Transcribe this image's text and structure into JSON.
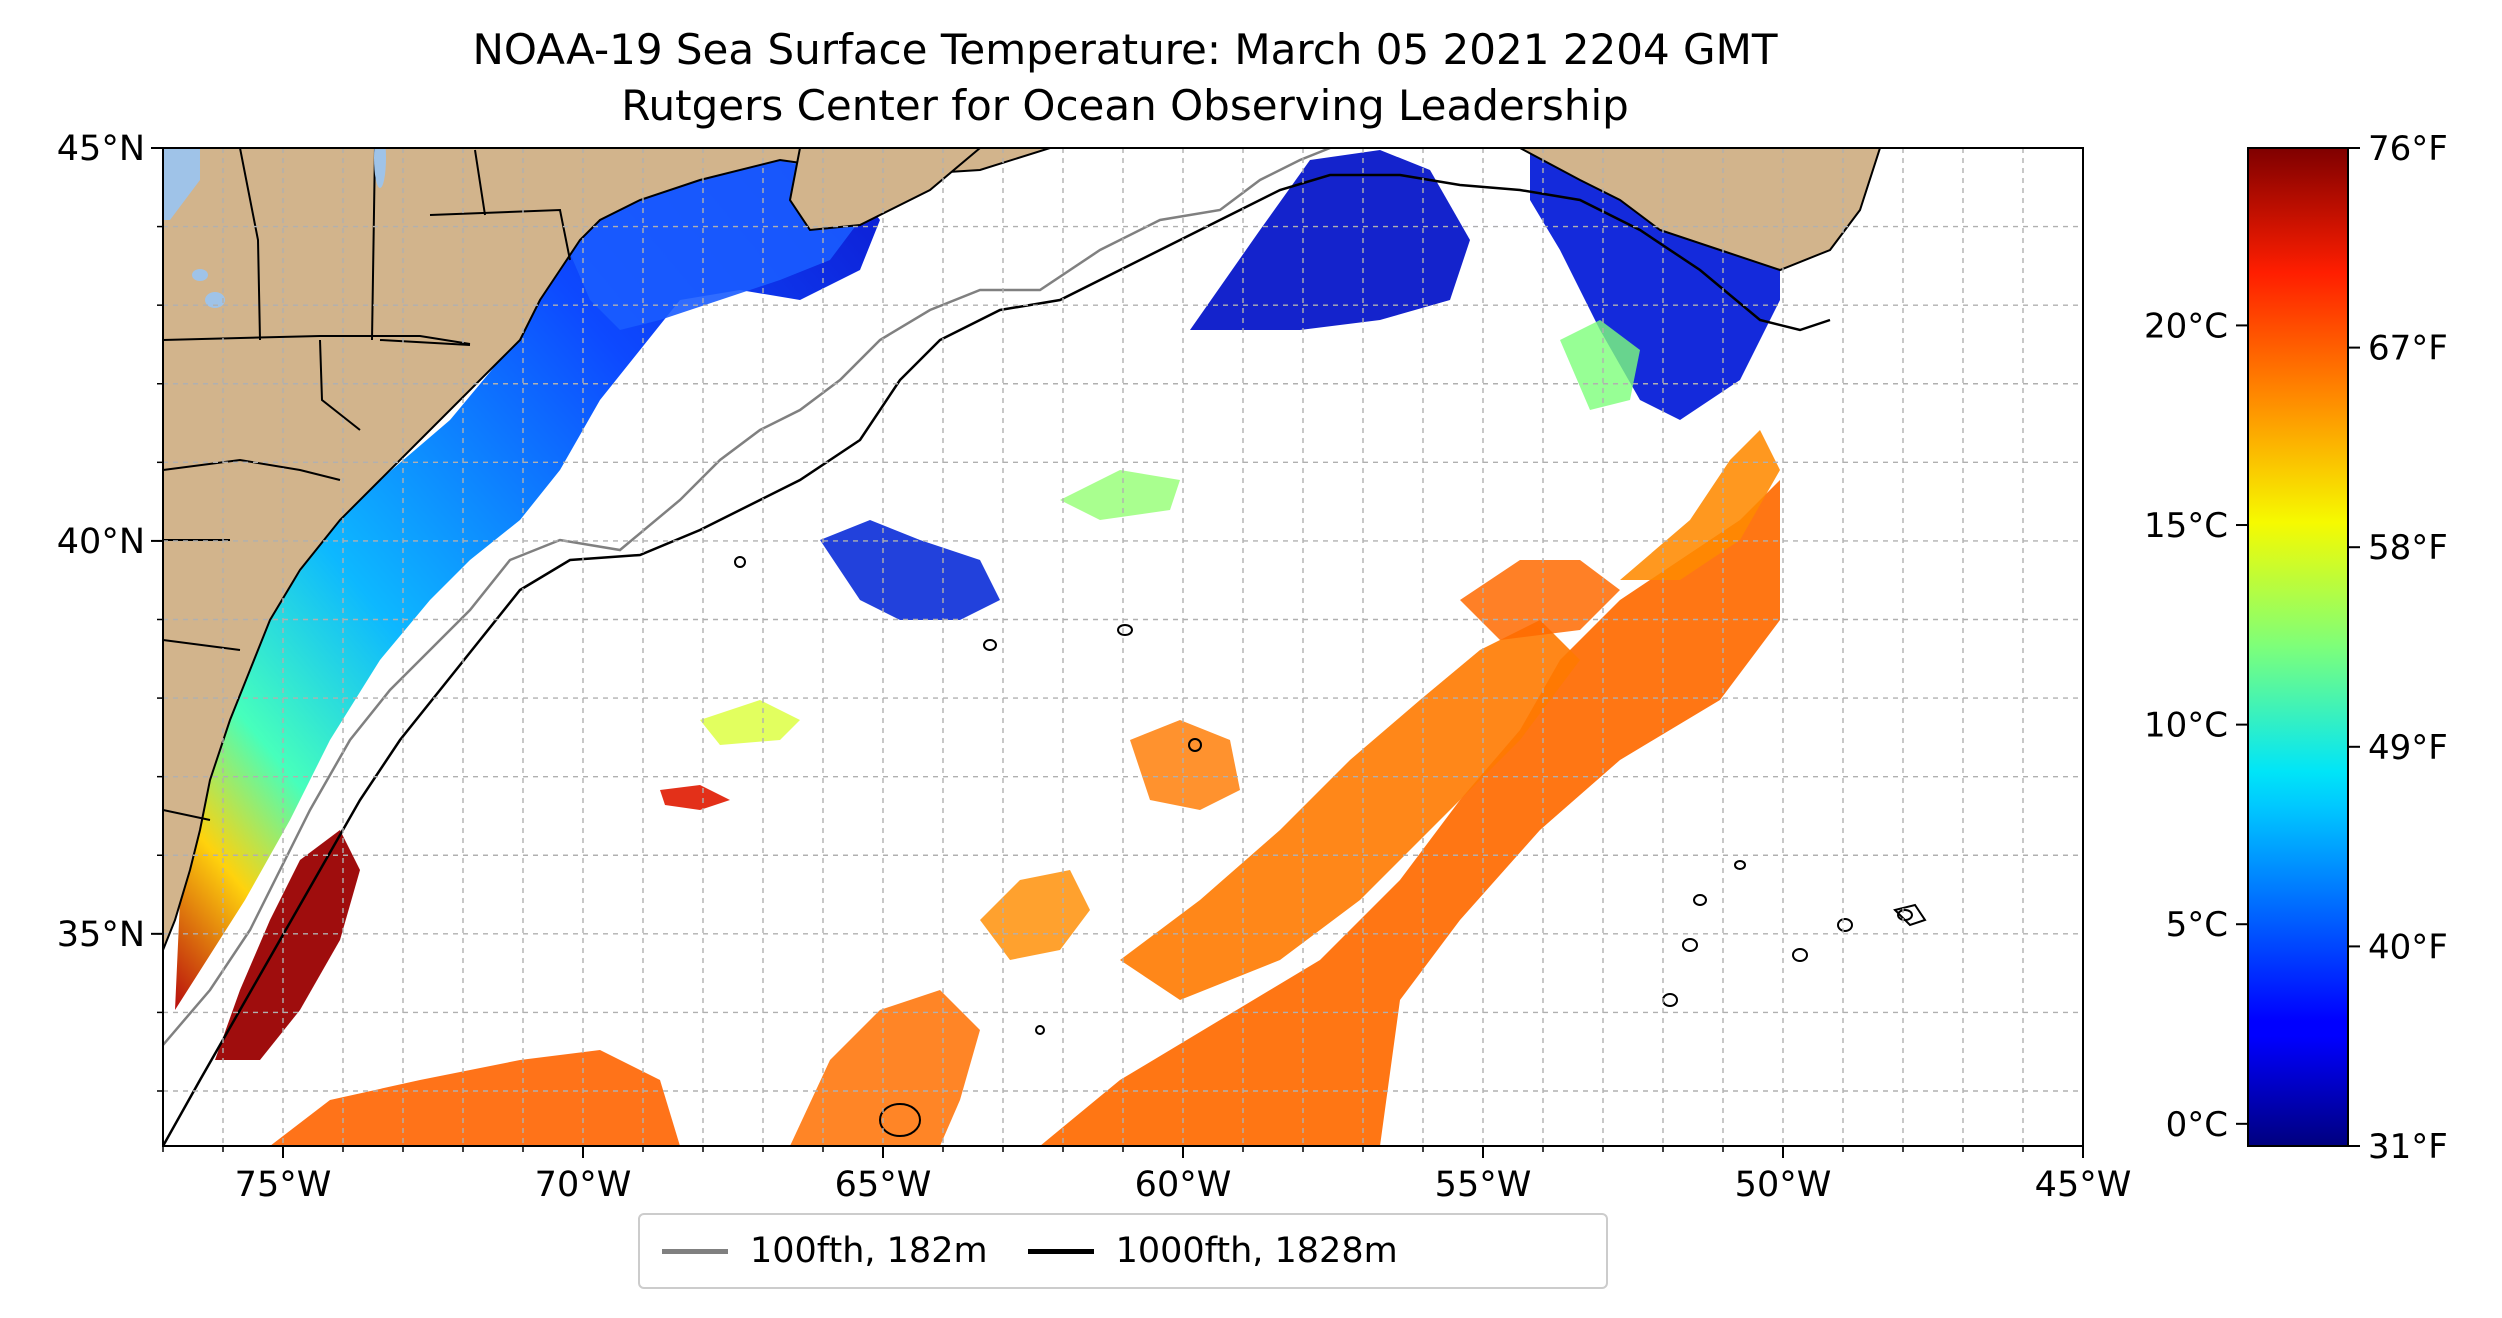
{
  "title": {
    "line1": "NOAA-19 Sea Surface Temperature: March 05 2021 2204 GMT",
    "line2": "Rutgers Center for Ocean Observing Leadership"
  },
  "map": {
    "lon_range": [
      -77,
      -45
    ],
    "lat_range": [
      32.3,
      45
    ],
    "lon_ticks": [
      "75°W",
      "70°W",
      "65°W",
      "60°W",
      "55°W",
      "50°W",
      "45°W"
    ],
    "lat_ticks": [
      "45°N",
      "40°N",
      "35°N"
    ],
    "gridlines": true,
    "land_color": "#d2b48c",
    "lake_color": "#9fc3e8"
  },
  "colorbar": {
    "colormap": "jet",
    "range_f": [
      31,
      76
    ],
    "celsius_ticks": [
      "20°C",
      "15°C",
      "10°C",
      "5°C",
      "0°C"
    ],
    "fahrenheit_ticks": [
      "76°F",
      "67°F",
      "58°F",
      "49°F",
      "40°F",
      "31°F"
    ]
  },
  "legend": {
    "items": [
      {
        "label": "100fth, 182m",
        "color": "#808080"
      },
      {
        "label": "1000fth, 1828m",
        "color": "#000000"
      }
    ]
  }
}
